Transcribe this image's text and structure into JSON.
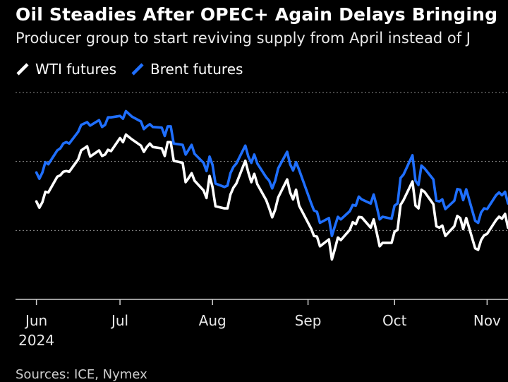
{
  "title": "Oil Steadies After OPEC+ Again Delays Bringing",
  "subtitle": "Producer group to start reviving supply from April instead of J",
  "source": "Sources: ICE, Nymex",
  "colors": {
    "wti": "#ffffff",
    "brent": "#1f6fff",
    "grid": "#8a8a8a",
    "background": "#000000"
  },
  "chart_data": {
    "type": "line",
    "grid": true,
    "legend_position": "top-left",
    "xlim": [
      "2024-05-27",
      "2024-11-08"
    ],
    "ylim": [
      60,
      90
    ],
    "y_gridlines": [
      70,
      80,
      90
    ],
    "x_ticks": [
      {
        "date": "2024-06-03",
        "label": "Jun",
        "sublabel": "2024"
      },
      {
        "date": "2024-07-01",
        "label": "Jul",
        "sublabel": ""
      },
      {
        "date": "2024-08-01",
        "label": "Aug",
        "sublabel": ""
      },
      {
        "date": "2024-09-02",
        "label": "Sep",
        "sublabel": ""
      },
      {
        "date": "2024-10-01",
        "label": "Oct",
        "sublabel": ""
      },
      {
        "date": "2024-11-01",
        "label": "Nov",
        "sublabel": ""
      }
    ],
    "x": [
      "2024-06-03",
      "2024-06-04",
      "2024-06-05",
      "2024-06-06",
      "2024-06-07",
      "2024-06-10",
      "2024-06-11",
      "2024-06-12",
      "2024-06-13",
      "2024-06-14",
      "2024-06-17",
      "2024-06-18",
      "2024-06-20",
      "2024-06-21",
      "2024-06-24",
      "2024-06-25",
      "2024-06-26",
      "2024-06-27",
      "2024-06-28",
      "2024-07-01",
      "2024-07-02",
      "2024-07-03",
      "2024-07-05",
      "2024-07-08",
      "2024-07-09",
      "2024-07-10",
      "2024-07-11",
      "2024-07-12",
      "2024-07-15",
      "2024-07-16",
      "2024-07-17",
      "2024-07-18",
      "2024-07-19",
      "2024-07-22",
      "2024-07-23",
      "2024-07-24",
      "2024-07-25",
      "2024-07-26",
      "2024-07-29",
      "2024-07-30",
      "2024-07-31",
      "2024-08-01",
      "2024-08-02",
      "2024-08-05",
      "2024-08-06",
      "2024-08-07",
      "2024-08-08",
      "2024-08-09",
      "2024-08-12",
      "2024-08-13",
      "2024-08-14",
      "2024-08-15",
      "2024-08-16",
      "2024-08-19",
      "2024-08-20",
      "2024-08-21",
      "2024-08-22",
      "2024-08-23",
      "2024-08-26",
      "2024-08-27",
      "2024-08-28",
      "2024-08-29",
      "2024-08-30",
      "2024-09-03",
      "2024-09-04",
      "2024-09-05",
      "2024-09-06",
      "2024-09-09",
      "2024-09-10",
      "2024-09-11",
      "2024-09-12",
      "2024-09-13",
      "2024-09-16",
      "2024-09-17",
      "2024-09-18",
      "2024-09-19",
      "2024-09-20",
      "2024-09-23",
      "2024-09-24",
      "2024-09-25",
      "2024-09-26",
      "2024-09-27",
      "2024-09-30",
      "2024-10-01",
      "2024-10-02",
      "2024-10-03",
      "2024-10-04",
      "2024-10-07",
      "2024-10-08",
      "2024-10-09",
      "2024-10-10",
      "2024-10-11",
      "2024-10-14",
      "2024-10-15",
      "2024-10-16",
      "2024-10-17",
      "2024-10-18",
      "2024-10-21",
      "2024-10-22",
      "2024-10-23",
      "2024-10-24",
      "2024-10-25",
      "2024-10-28",
      "2024-10-29",
      "2024-10-30",
      "2024-10-31",
      "2024-11-01",
      "2024-11-04",
      "2024-11-05",
      "2024-11-06",
      "2024-11-07",
      "2024-11-08"
    ],
    "series": [
      {
        "name": "WTI futures",
        "values": [
          74.2,
          73.3,
          74.1,
          75.6,
          75.5,
          77.8,
          78.0,
          78.5,
          78.6,
          78.5,
          80.3,
          81.6,
          82.2,
          80.7,
          81.6,
          80.8,
          81.0,
          81.7,
          81.5,
          83.4,
          82.8,
          83.9,
          83.2,
          82.3,
          81.4,
          82.1,
          82.6,
          82.1,
          81.9,
          80.8,
          82.8,
          82.8,
          80.1,
          79.8,
          77.0,
          77.6,
          78.3,
          77.2,
          75.8,
          74.7,
          77.9,
          76.3,
          73.5,
          73.2,
          73.2,
          75.2,
          76.2,
          76.8,
          80.1,
          78.4,
          77.0,
          78.2,
          76.7,
          74.4,
          73.2,
          71.9,
          73.0,
          74.8,
          77.4,
          75.5,
          74.5,
          75.9,
          73.6,
          70.3,
          69.2,
          69.1,
          67.7,
          68.7,
          65.8,
          67.3,
          68.97,
          68.6,
          70.1,
          71.2,
          70.9,
          71.95,
          71.9,
          70.4,
          71.6,
          69.7,
          67.7,
          68.2,
          68.2,
          69.8,
          70.1,
          73.7,
          74.4,
          77.1,
          73.6,
          73.2,
          75.9,
          75.6,
          73.8,
          70.6,
          70.4,
          70.7,
          69.2,
          70.6,
          72.1,
          71.8,
          70.2,
          71.8,
          67.4,
          67.2,
          68.6,
          69.3,
          69.5,
          71.5,
          71.99,
          71.7,
          72.4,
          70.4
        ]
      },
      {
        "name": "Brent futures",
        "values": [
          78.4,
          77.5,
          78.4,
          79.9,
          79.6,
          81.6,
          81.9,
          82.6,
          82.8,
          82.6,
          84.3,
          85.3,
          85.7,
          85.2,
          86.0,
          85.0,
          85.3,
          86.4,
          86.4,
          86.6,
          86.2,
          87.3,
          86.5,
          85.8,
          84.7,
          85.1,
          85.4,
          85.0,
          84.9,
          83.7,
          85.1,
          85.1,
          82.6,
          82.4,
          81.0,
          81.7,
          82.4,
          81.1,
          79.8,
          78.6,
          80.7,
          79.5,
          76.8,
          76.3,
          76.5,
          78.3,
          79.2,
          79.7,
          82.3,
          80.7,
          79.8,
          81.0,
          79.7,
          77.7,
          77.2,
          76.1,
          77.2,
          79.0,
          81.4,
          79.6,
          78.7,
          79.9,
          78.8,
          74.0,
          72.9,
          72.7,
          71.1,
          71.8,
          69.2,
          70.6,
          71.97,
          71.6,
          72.8,
          73.7,
          73.6,
          74.9,
          74.5,
          73.9,
          75.2,
          73.5,
          71.6,
          71.98,
          71.7,
          73.6,
          73.9,
          77.6,
          78.1,
          80.9,
          77.2,
          76.6,
          79.4,
          79.0,
          77.4,
          74.3,
          74.2,
          74.5,
          73.1,
          74.3,
          76.0,
          75.9,
          74.4,
          75.96,
          71.4,
          71.1,
          72.6,
          73.2,
          73.1,
          75.1,
          75.5,
          75.1,
          75.6,
          73.9
        ]
      }
    ]
  }
}
